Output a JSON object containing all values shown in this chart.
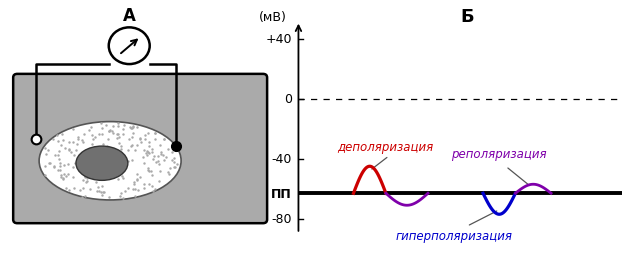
{
  "title_right": "Б",
  "title_left": "А",
  "ylabel": "(мВ)",
  "ytick_labels": [
    "+40",
    "0",
    "-40",
    "-80"
  ],
  "ytick_vals": [
    40,
    0,
    -40,
    -80
  ],
  "ylim": [
    -95,
    58
  ],
  "xlim": [
    0,
    100
  ],
  "pp_label": "ПП",
  "pp_value": -63,
  "label_depol": "деполяризация",
  "label_repol": "реполяризация",
  "label_hyperpol": "гиперполяризация",
  "color_depol": "#cc0000",
  "color_repol": "#7f00aa",
  "color_hyperpol": "#0000cc",
  "color_baseline": "#000000",
  "background_color": "#ffffff",
  "cell_bg": "#aaaaaa",
  "cell_body_color": "#ffffff",
  "nucleus_color": "#707070"
}
